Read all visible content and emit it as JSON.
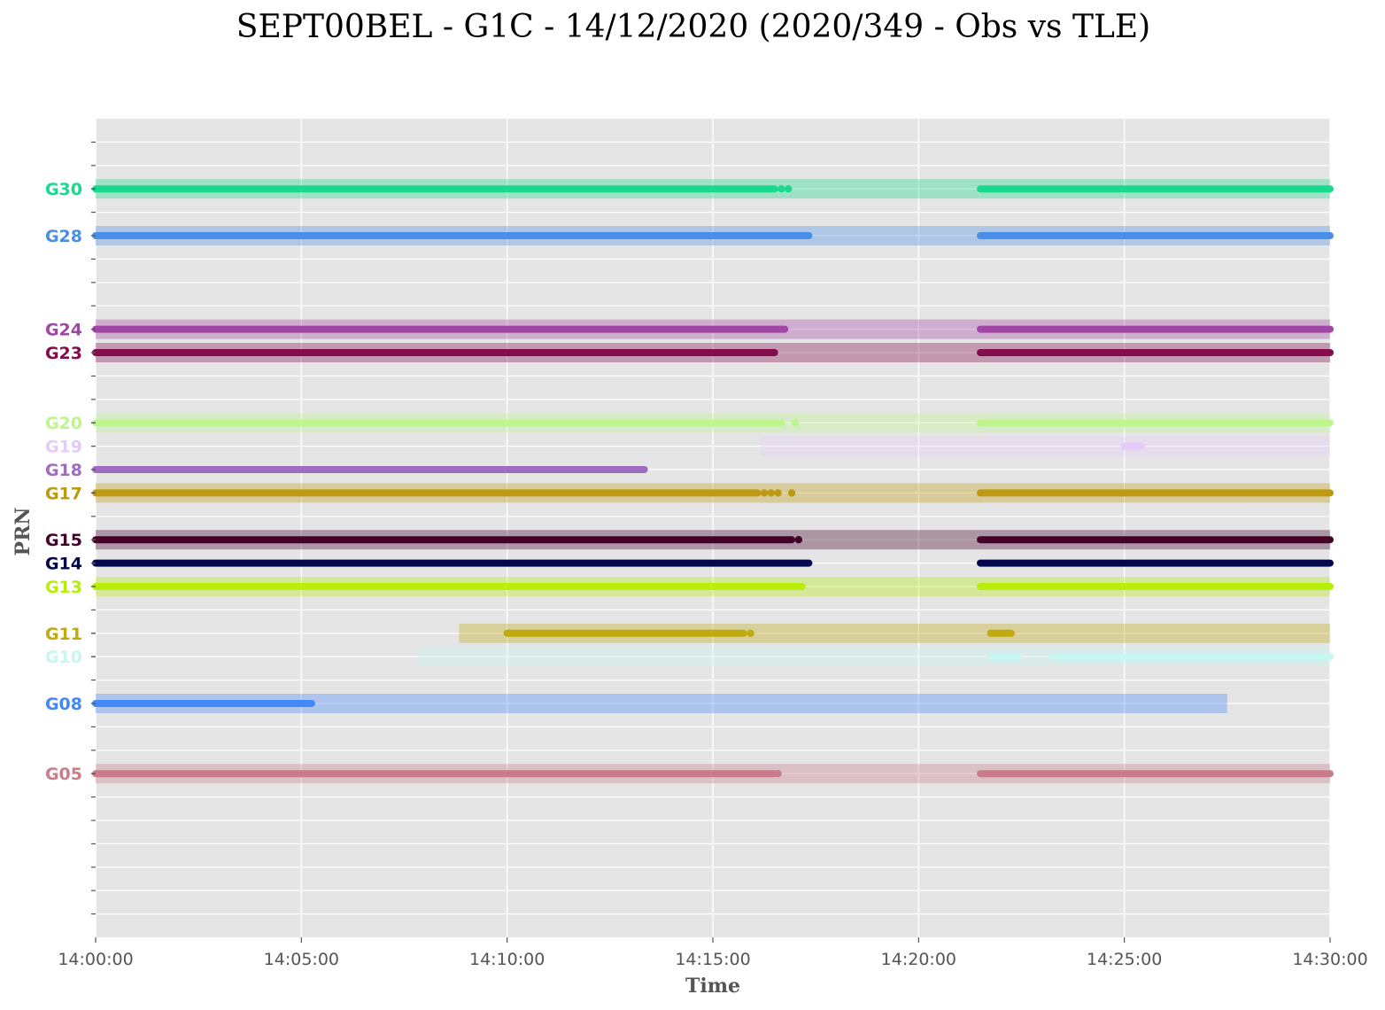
{
  "chart_data": {
    "type": "timeline",
    "title": "SEPT00BEL - G1C - 14/12/2020 (2020/349 - Obs vs TLE)",
    "xlabel": "Time",
    "ylabel": "PRN",
    "grid": true,
    "background": "#e5e5e5",
    "x_range": [
      "14:00:00",
      "14:30:00"
    ],
    "x_ticks": [
      "14:00:00",
      "14:05:00",
      "14:10:00",
      "14:15:00",
      "14:20:00",
      "14:25:00",
      "14:30:00"
    ],
    "y_range": [
      -2,
      33
    ],
    "series": [
      {
        "name": "G30",
        "prn": 30,
        "color": "#19d98d",
        "tle": [
          [
            "14:00:00",
            "14:30:00"
          ]
        ],
        "obs": [
          [
            "14:00:00",
            "14:16:30"
          ],
          [
            "14:21:30",
            "14:30:00"
          ]
        ],
        "obs_points": [
          "14:16:40",
          "14:16:50"
        ]
      },
      {
        "name": "G28",
        "prn": 28,
        "color": "#4a8fe6",
        "tle": [
          [
            "14:00:00",
            "14:30:00"
          ]
        ],
        "obs": [
          [
            "14:00:00",
            "14:17:20"
          ],
          [
            "14:21:30",
            "14:30:00"
          ]
        ],
        "obs_points": []
      },
      {
        "name": "G24",
        "prn": 24,
        "color": "#a246a5",
        "tle": [
          [
            "14:00:00",
            "14:30:00"
          ]
        ],
        "obs": [
          [
            "14:00:00",
            "14:16:45"
          ],
          [
            "14:21:30",
            "14:30:00"
          ]
        ],
        "obs_points": []
      },
      {
        "name": "G23",
        "prn": 23,
        "color": "#840c4c",
        "tle": [
          [
            "14:00:00",
            "14:30:00"
          ]
        ],
        "obs": [
          [
            "14:00:00",
            "14:16:30"
          ],
          [
            "14:21:30",
            "14:30:00"
          ]
        ],
        "obs_points": []
      },
      {
        "name": "G20",
        "prn": 20,
        "color": "#bff58e",
        "tle": [
          [
            "14:00:00",
            "14:30:00"
          ]
        ],
        "obs": [
          [
            "14:00:00",
            "14:16:40"
          ],
          [
            "14:21:30",
            "14:30:00"
          ]
        ],
        "obs_points": [
          "14:17:00"
        ]
      },
      {
        "name": "G19",
        "prn": 19,
        "color": "#e5cbf8",
        "tle": [
          [
            "14:16:10",
            "14:30:00"
          ]
        ],
        "obs": [
          [
            "14:25:00",
            "14:25:25"
          ]
        ],
        "obs_points": []
      },
      {
        "name": "G18",
        "prn": 18,
        "color": "#9f6cbf",
        "tle": [],
        "obs": [
          [
            "14:00:00",
            "14:13:20"
          ]
        ],
        "obs_points": []
      },
      {
        "name": "G17",
        "prn": 17,
        "color": "#bd9a10",
        "tle": [
          [
            "14:00:00",
            "14:30:00"
          ]
        ],
        "obs": [
          [
            "14:00:00",
            "14:16:05"
          ],
          [
            "14:21:30",
            "14:30:00"
          ]
        ],
        "obs_points": [
          "14:16:15",
          "14:16:25",
          "14:16:35",
          "14:16:55"
        ]
      },
      {
        "name": "G15",
        "prn": 15,
        "color": "#43022a",
        "tle": [
          [
            "14:00:00",
            "14:30:00"
          ]
        ],
        "obs": [
          [
            "14:00:00",
            "14:16:55"
          ],
          [
            "14:21:30",
            "14:30:00"
          ]
        ],
        "obs_points": [
          "14:17:05"
        ]
      },
      {
        "name": "G14",
        "prn": 14,
        "color": "#03084d",
        "tle": [],
        "obs": [
          [
            "14:00:00",
            "14:17:20"
          ],
          [
            "14:21:30",
            "14:30:00"
          ]
        ],
        "obs_points": []
      },
      {
        "name": "G13",
        "prn": 13,
        "color": "#b7ef0b",
        "tle": [
          [
            "14:00:00",
            "14:30:00"
          ]
        ],
        "obs": [
          [
            "14:00:00",
            "14:17:10"
          ],
          [
            "14:21:30",
            "14:30:00"
          ]
        ],
        "obs_points": []
      },
      {
        "name": "G11",
        "prn": 11,
        "color": "#c0aa0d",
        "tle": [
          [
            "14:08:50",
            "14:30:00"
          ]
        ],
        "obs": [
          [
            "14:10:00",
            "14:15:45"
          ],
          [
            "14:21:45",
            "14:22:15"
          ]
        ],
        "obs_points": [
          "14:15:55"
        ]
      },
      {
        "name": "G10",
        "prn": 10,
        "color": "#c6f7f0",
        "tle": [
          [
            "14:07:50",
            "14:30:00"
          ]
        ],
        "obs": [
          [
            "14:21:45",
            "14:22:25"
          ],
          [
            "14:23:15",
            "14:30:00"
          ]
        ],
        "obs_points": []
      },
      {
        "name": "G08",
        "prn": 8,
        "color": "#4488f8",
        "tle": [
          [
            "14:00:00",
            "14:27:30"
          ]
        ],
        "obs": [
          [
            "14:00:00",
            "14:05:15"
          ]
        ],
        "obs_points": []
      },
      {
        "name": "G05",
        "prn": 5,
        "color": "#c97d8a",
        "tle": [
          [
            "14:00:00",
            "14:30:00"
          ]
        ],
        "obs": [
          [
            "14:00:00",
            "14:16:30"
          ],
          [
            "14:21:30",
            "14:30:00"
          ]
        ],
        "obs_points": [
          "14:16:35"
        ]
      }
    ]
  }
}
